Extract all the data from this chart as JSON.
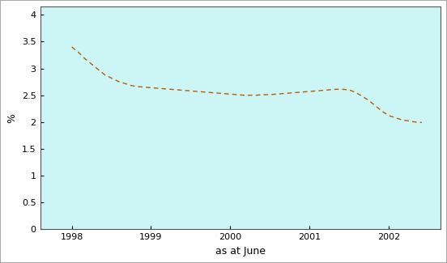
{
  "x": [
    1998.0,
    1998.083,
    1998.167,
    1998.25,
    1998.333,
    1998.417,
    1998.5,
    1998.583,
    1998.667,
    1998.75,
    1998.833,
    1998.917,
    1999.0,
    1999.083,
    1999.167,
    1999.25,
    1999.333,
    1999.417,
    1999.5,
    1999.583,
    1999.667,
    1999.75,
    1999.833,
    1999.917,
    2000.0,
    2000.083,
    2000.167,
    2000.25,
    2000.333,
    2000.417,
    2000.5,
    2000.583,
    2000.667,
    2000.75,
    2000.833,
    2000.917,
    2001.0,
    2001.083,
    2001.167,
    2001.25,
    2001.333,
    2001.417,
    2001.5,
    2001.583,
    2001.667,
    2001.75,
    2001.833,
    2001.917,
    2002.0,
    2002.083,
    2002.167,
    2002.25,
    2002.333,
    2002.417
  ],
  "y": [
    3.4,
    3.3,
    3.18,
    3.08,
    2.98,
    2.88,
    2.82,
    2.76,
    2.72,
    2.68,
    2.66,
    2.65,
    2.64,
    2.63,
    2.62,
    2.61,
    2.6,
    2.59,
    2.58,
    2.57,
    2.56,
    2.55,
    2.54,
    2.53,
    2.52,
    2.51,
    2.5,
    2.5,
    2.5,
    2.51,
    2.51,
    2.52,
    2.53,
    2.54,
    2.55,
    2.56,
    2.57,
    2.58,
    2.59,
    2.6,
    2.61,
    2.61,
    2.6,
    2.55,
    2.48,
    2.4,
    2.3,
    2.2,
    2.12,
    2.08,
    2.04,
    2.02,
    2.0,
    1.99
  ],
  "line_color": "#b85c00",
  "line_style": "--",
  "line_width": 1.0,
  "plot_bg_color": "#ccf5f5",
  "figure_facecolor": "#ffffff",
  "xlabel": "as at June",
  "ylabel": "%",
  "xlabel_fontsize": 9,
  "ylabel_fontsize": 9,
  "xticks": [
    1998,
    1999,
    2000,
    2001,
    2002
  ],
  "ytick_labels": [
    "0",
    "0.5",
    "1",
    "1.5",
    "2",
    "2.5",
    "3",
    "3.5",
    "4"
  ],
  "ytick_values": [
    0,
    0.5,
    1.0,
    1.5,
    2.0,
    2.5,
    3.0,
    3.5,
    4.0
  ],
  "xlim": [
    1997.6,
    2002.65
  ],
  "ylim": [
    0,
    4.15
  ],
  "tick_fontsize": 8,
  "spine_color": "#555555"
}
